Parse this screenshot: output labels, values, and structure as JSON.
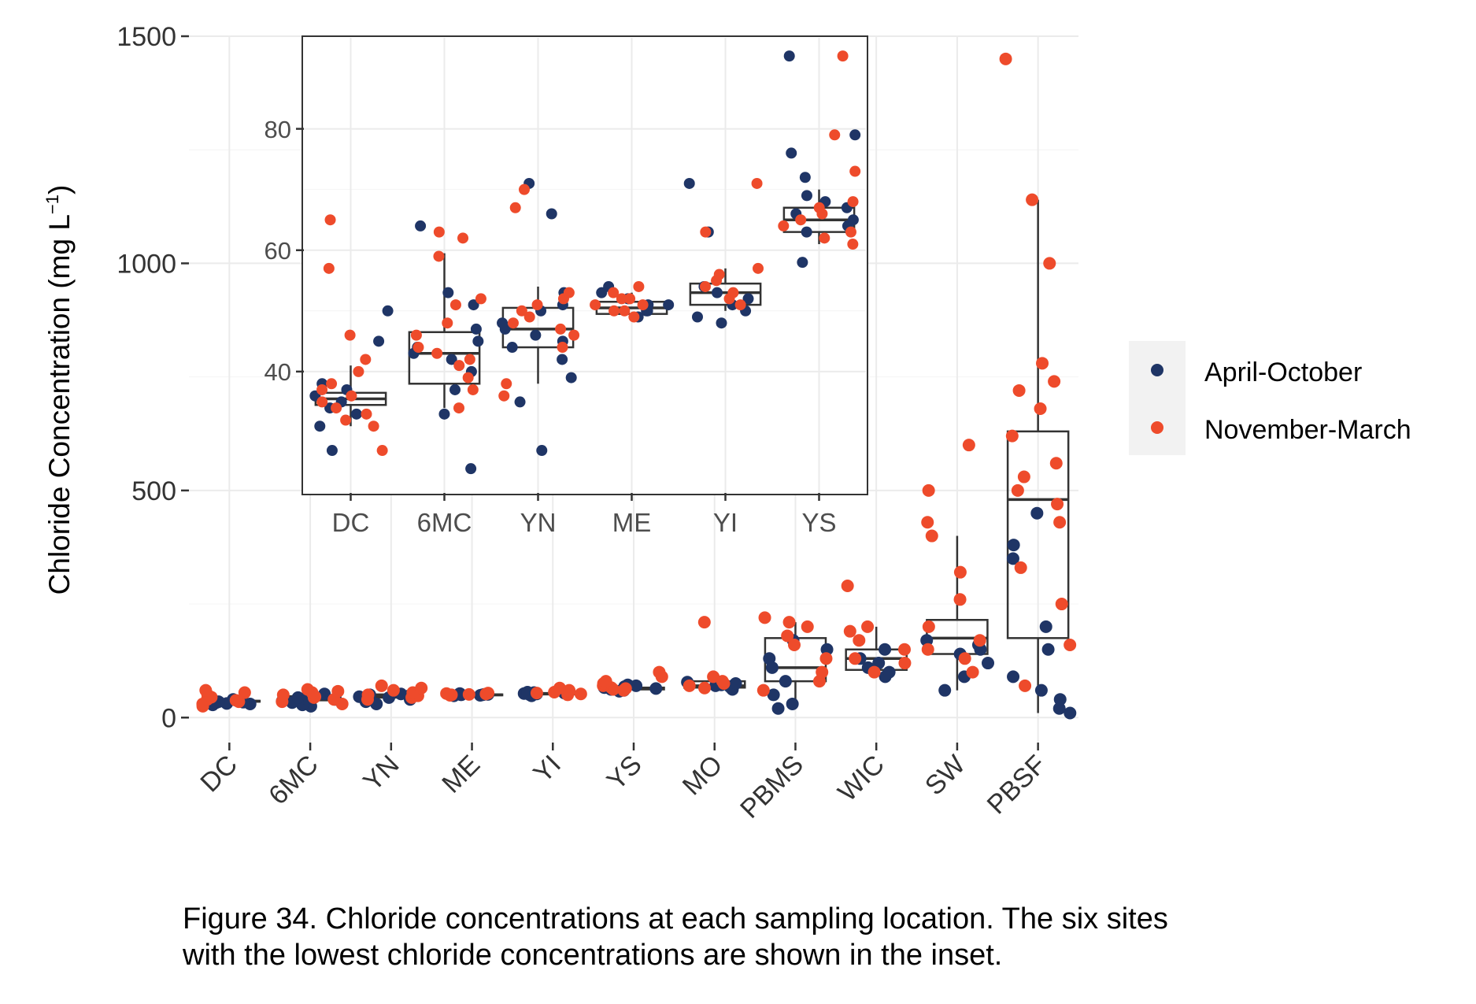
{
  "chart_data": [
    {
      "type": "scatter",
      "title": "",
      "xlabel": "",
      "ylabel_main": "Chloride Concentration (mg L",
      "ylabel_sup": "−1",
      "ylabel_close": ")",
      "categories": [
        "DC",
        "6MC",
        "YN",
        "ME",
        "YI",
        "YS",
        "MO",
        "PBMS",
        "WIC",
        "SW",
        "PBSF"
      ],
      "yticks": [
        0,
        500,
        1000,
        1500
      ],
      "ytick_labels": [
        "0",
        "500",
        "1000",
        "1500"
      ],
      "ylim": [
        -55,
        1500
      ],
      "grid": true,
      "legend": {
        "position": "right",
        "entries": [
          {
            "label": "April-October",
            "color": "#1f3566"
          },
          {
            "label": "November-March",
            "color": "#ee4b2b"
          }
        ]
      },
      "boxes": [
        {
          "site": "DC",
          "q1": 35,
          "median": 36,
          "q3": 37,
          "lo": 30,
          "hi": 40
        },
        {
          "site": "6MC",
          "q1": 38,
          "median": 43,
          "q3": 47,
          "lo": 33,
          "hi": 52
        },
        {
          "site": "YN",
          "q1": 44,
          "median": 47,
          "q3": 51,
          "lo": 38,
          "hi": 55
        },
        {
          "site": "ME",
          "q1": 49,
          "median": 50,
          "q3": 51,
          "lo": 49,
          "hi": 53
        },
        {
          "site": "YI",
          "q1": 51,
          "median": 53,
          "q3": 54,
          "lo": 50,
          "hi": 57
        },
        {
          "site": "YS",
          "q1": 62,
          "median": 64,
          "q3": 66,
          "lo": 60,
          "hi": 70
        },
        {
          "site": "MO",
          "q1": 66,
          "median": 70,
          "q3": 80,
          "lo": 60,
          "hi": 95
        },
        {
          "site": "PBMS",
          "q1": 80,
          "median": 110,
          "q3": 175,
          "lo": 20,
          "hi": 210
        },
        {
          "site": "WIC",
          "q1": 105,
          "median": 130,
          "q3": 150,
          "lo": 90,
          "hi": 200
        },
        {
          "site": "SW",
          "q1": 140,
          "median": 175,
          "q3": 215,
          "lo": 60,
          "hi": 400
        },
        {
          "site": "PBSF",
          "q1": 175,
          "median": 480,
          "q3": 630,
          "lo": 10,
          "hi": 1140
        }
      ],
      "points_april_october": {
        "DC": [
          28,
          30,
          31,
          33,
          34,
          35,
          36,
          37,
          38,
          40
        ],
        "6MC": [
          25,
          28,
          33,
          36,
          40,
          42,
          44,
          46,
          48,
          52
        ],
        "YN": [
          30,
          35,
          40,
          44,
          46,
          48,
          50,
          52
        ],
        "ME": [
          48,
          49,
          50,
          50,
          51,
          51,
          52,
          53
        ],
        "YI": [
          48,
          50,
          52,
          53,
          54,
          55,
          56
        ],
        "YS": [
          58,
          60,
          62,
          64,
          66,
          68,
          70,
          72
        ],
        "MO": [
          62,
          65,
          68,
          70,
          72,
          75,
          78
        ],
        "PBMS": [
          20,
          30,
          50,
          80,
          110,
          130,
          150,
          170
        ],
        "WIC": [
          90,
          100,
          110,
          120,
          130,
          150
        ],
        "SW": [
          60,
          90,
          120,
          140,
          150,
          160,
          170
        ],
        "PBSF": [
          10,
          20,
          40,
          60,
          90,
          150,
          200,
          350,
          380,
          450
        ]
      },
      "points_november_march": {
        "DC": [
          25,
          30,
          35,
          38,
          40,
          45,
          50,
          55,
          60
        ],
        "6MC": [
          30,
          35,
          40,
          44,
          46,
          50,
          55,
          58,
          62
        ],
        "YN": [
          40,
          44,
          48,
          50,
          55,
          60,
          65,
          70
        ],
        "ME": [
          49,
          50,
          51,
          52,
          53,
          54
        ],
        "YI": [
          50,
          52,
          54,
          56,
          58,
          60,
          65
        ],
        "YS": [
          60,
          62,
          64,
          66,
          70,
          75,
          80,
          90,
          100
        ],
        "MO": [
          65,
          70,
          75,
          80,
          90,
          210
        ],
        "PBMS": [
          60,
          80,
          100,
          130,
          160,
          180,
          200,
          210,
          220
        ],
        "WIC": [
          100,
          120,
          130,
          150,
          170,
          190,
          200,
          290
        ],
        "SW": [
          100,
          130,
          150,
          170,
          200,
          260,
          320,
          400,
          430,
          500,
          600
        ],
        "PBSF": [
          70,
          160,
          250,
          330,
          430,
          470,
          500,
          530,
          560,
          620,
          680,
          720,
          740,
          780,
          1000,
          1140,
          1450
        ]
      }
    },
    {
      "type": "scatter",
      "title": "",
      "categories": [
        "DC",
        "6MC",
        "YN",
        "ME",
        "YI",
        "YS"
      ],
      "yticks": [
        40,
        60,
        80
      ],
      "ytick_labels": [
        "40",
        "60",
        "80"
      ],
      "ylim": [
        20,
        95
      ],
      "grid": true,
      "boxes": [
        {
          "site": "DC",
          "q1": 34.5,
          "median": 35.5,
          "q3": 36.5,
          "lo": 31,
          "hi": 41
        },
        {
          "site": "6MC",
          "q1": 38,
          "median": 43,
          "q3": 46.5,
          "lo": 34,
          "hi": 59.5
        },
        {
          "site": "YN",
          "q1": 44,
          "median": 47,
          "q3": 50.5,
          "lo": 38,
          "hi": 54
        },
        {
          "site": "ME",
          "q1": 49.5,
          "median": 50.5,
          "q3": 51.5,
          "lo": 49,
          "hi": 53
        },
        {
          "site": "YI",
          "q1": 51,
          "median": 53,
          "q3": 54.5,
          "lo": 50,
          "hi": 57
        },
        {
          "site": "YS",
          "q1": 63,
          "median": 65,
          "q3": 67,
          "lo": 61,
          "hi": 70
        }
      ],
      "points_april_october": {
        "DC": [
          27,
          31,
          33,
          34,
          35,
          36,
          37,
          38,
          45,
          50
        ],
        "6MC": [
          24,
          33,
          37,
          40,
          42,
          43,
          44,
          45,
          47,
          51,
          53,
          64
        ],
        "YN": [
          27,
          35,
          39,
          42,
          44,
          45,
          46,
          47,
          48,
          50,
          51,
          53,
          66,
          71
        ],
        "ME": [
          49,
          50,
          50,
          51,
          51,
          52,
          53,
          54
        ],
        "YI": [
          48,
          49,
          50,
          51,
          52,
          53,
          54,
          63,
          71
        ],
        "YS": [
          58,
          63,
          64,
          65,
          66,
          67,
          68,
          69,
          72,
          76,
          79,
          92
        ]
      },
      "points_november_march": {
        "DC": [
          27,
          31,
          32,
          33,
          34,
          35,
          36,
          37,
          38,
          40,
          42,
          46,
          57,
          65
        ],
        "6MC": [
          34,
          37,
          39,
          41,
          42,
          43,
          44,
          46,
          48,
          51,
          52,
          59,
          62,
          63
        ],
        "YN": [
          36,
          38,
          44,
          46,
          47,
          48,
          49,
          50,
          51,
          52,
          53,
          67,
          70
        ],
        "ME": [
          49,
          50,
          50,
          51,
          51,
          52,
          52,
          53,
          54
        ],
        "YI": [
          51,
          52,
          53,
          54,
          55,
          56,
          57,
          63,
          71
        ],
        "YS": [
          61,
          62,
          63,
          64,
          65,
          66,
          67,
          68,
          73,
          79,
          92
        ]
      }
    }
  ],
  "caption": {
    "line1": "Figure 34. Chloride concentrations at each sampling location. The six sites",
    "line2": "with the lowest chloride concentrations are shown in the inset."
  }
}
